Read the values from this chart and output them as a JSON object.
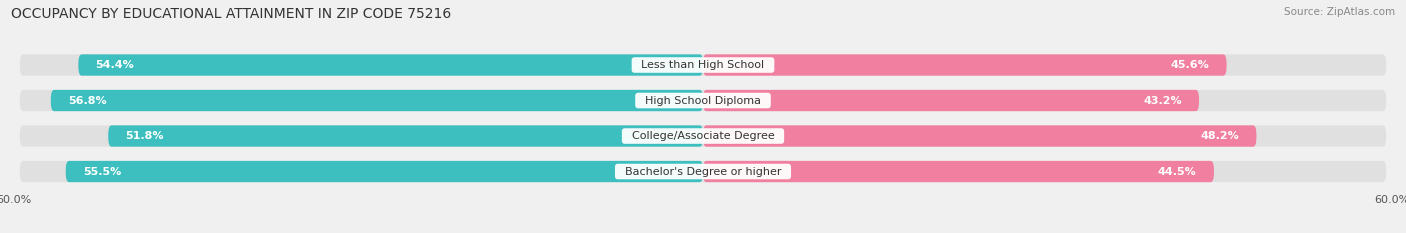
{
  "title": "OCCUPANCY BY EDUCATIONAL ATTAINMENT IN ZIP CODE 75216",
  "source": "Source: ZipAtlas.com",
  "categories": [
    "Less than High School",
    "High School Diploma",
    "College/Associate Degree",
    "Bachelor's Degree or higher"
  ],
  "owner_values": [
    54.4,
    56.8,
    51.8,
    55.5
  ],
  "renter_values": [
    45.6,
    43.2,
    48.2,
    44.5
  ],
  "owner_color": "#3dbfbf",
  "renter_color": "#f07fa0",
  "bar_bg_color": "#e0e0e0",
  "xlim": 60.0,
  "title_fontsize": 10,
  "source_fontsize": 7.5,
  "label_fontsize": 8,
  "value_fontsize": 8,
  "tick_fontsize": 8,
  "background_color": "#f0f0f0"
}
